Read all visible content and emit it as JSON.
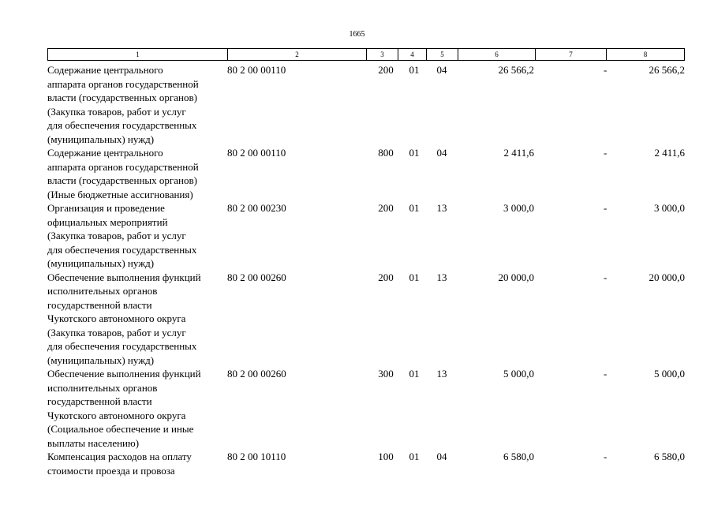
{
  "page": {
    "number": "1665"
  },
  "header": {
    "columns": [
      "1",
      "2",
      "3",
      "4",
      "5",
      "6",
      "7",
      "8"
    ]
  },
  "rows": [
    {
      "description": "Содержание центрального\nаппарата органов государственной\nвласти (государственных органов)\n(Закупка товаров, работ и услуг\nдля обеспечения государственных\n(муниципальных) нужд)",
      "code": "80 2 00 00110",
      "col3": "200",
      "col4": "01",
      "col5": "04",
      "col6": "26 566,2",
      "col7": "-",
      "col8": "26 566,2"
    },
    {
      "description": "Содержание центрального\nаппарата органов государственной\nвласти (государственных органов)\n(Иные бюджетные ассигнования)",
      "code": "80 2 00 00110",
      "col3": "800",
      "col4": "01",
      "col5": "04",
      "col6": "2 411,6",
      "col7": "-",
      "col8": "2 411,6"
    },
    {
      "description": "Организация и проведение\nофициальных мероприятий\n(Закупка товаров, работ и услуг\nдля обеспечения государственных\n(муниципальных) нужд)",
      "code": "80 2 00 00230",
      "col3": "200",
      "col4": "01",
      "col5": "13",
      "col6": "3 000,0",
      "col7": "-",
      "col8": "3 000,0"
    },
    {
      "description": "Обеспечение выполнения функций\nисполнительных органов\nгосударственной власти\nЧукотского автономного округа\n(Закупка товаров, работ и услуг\nдля обеспечения государственных\n(муниципальных) нужд)",
      "code": "80 2 00 00260",
      "col3": "200",
      "col4": "01",
      "col5": "13",
      "col6": "20 000,0",
      "col7": "-",
      "col8": "20 000,0"
    },
    {
      "description": "Обеспечение выполнения функций\nисполнительных органов\nгосударственной власти\nЧукотского автономного округа\n(Социальное обеспечение и иные\nвыплаты населению)",
      "code": "80 2 00 00260",
      "col3": "300",
      "col4": "01",
      "col5": "13",
      "col6": "5 000,0",
      "col7": "-",
      "col8": "5 000,0"
    },
    {
      "description": "Компенсация расходов на оплату\nстоимости проезда и провоза",
      "code": "80 2 00 10110",
      "col3": "100",
      "col4": "01",
      "col5": "04",
      "col6": "6 580,0",
      "col7": "-",
      "col8": "6 580,0"
    }
  ]
}
